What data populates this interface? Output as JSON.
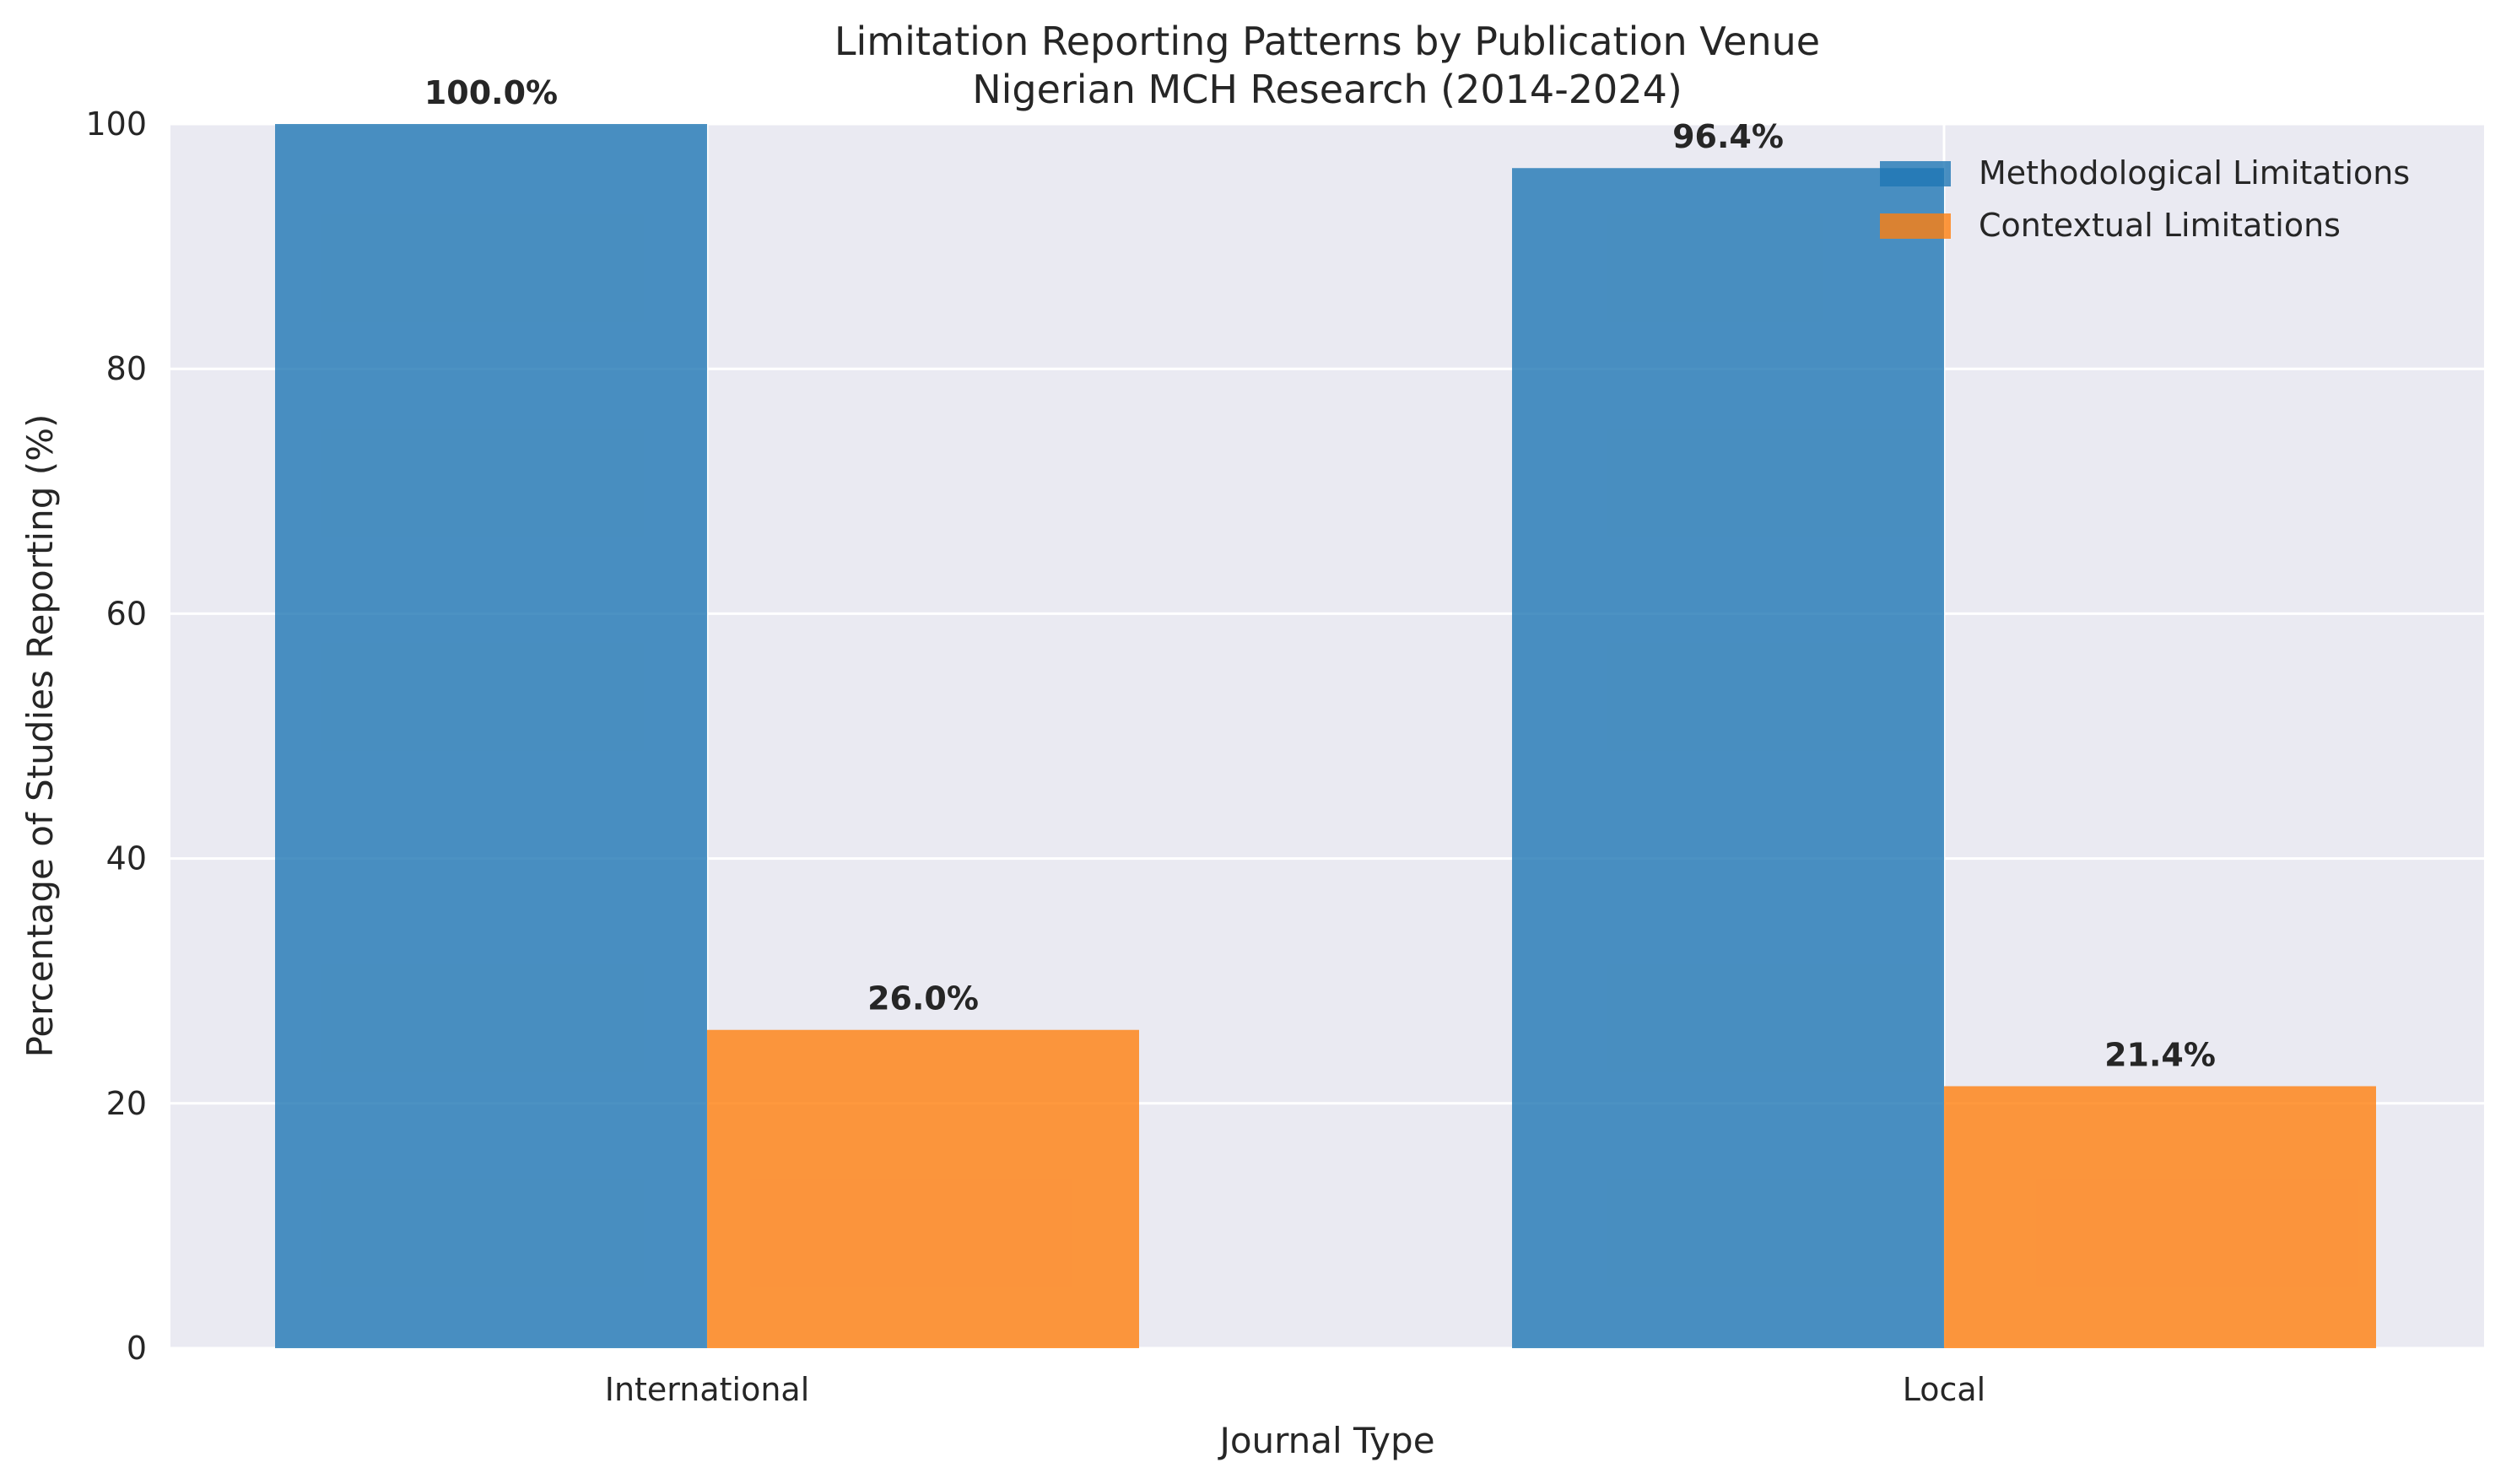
{
  "chart_data": {
    "type": "bar",
    "title": "Limitation Reporting Patterns by Publication Venue",
    "subtitle": "Nigerian MCH Research (2014-2024)",
    "xlabel": "Journal Type",
    "ylabel": "Percentage of Studies Reporting (%)",
    "categories": [
      "International",
      "Local"
    ],
    "series": [
      {
        "name": "Methodological Limitations",
        "values": [
          100.0,
          96.4
        ],
        "labels": [
          "100.0%",
          "96.4%"
        ],
        "color": "#1f77b4"
      },
      {
        "name": "Contextual Limitations",
        "values": [
          26.0,
          21.4
        ],
        "labels": [
          "26.0%",
          "21.4%"
        ],
        "color": "#ff7f0e"
      }
    ],
    "ylim": [
      0,
      100
    ],
    "yticks": [
      "0",
      "20",
      "40",
      "60",
      "80",
      "100"
    ],
    "grid": true,
    "legend": "top-right",
    "background": "#eaeaf2",
    "bar_opacity": 0.8
  }
}
